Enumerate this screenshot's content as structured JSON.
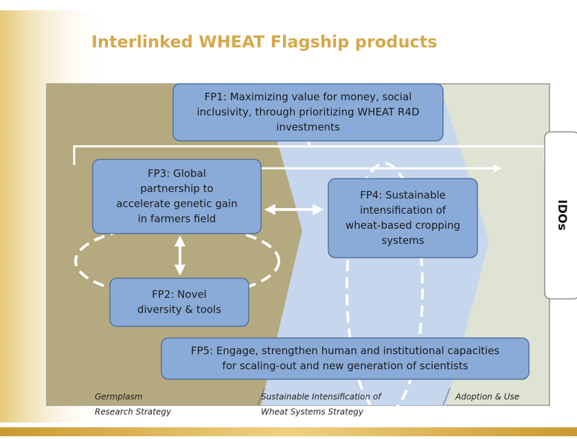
{
  "title": "Interlinked WHEAT Flagship products",
  "nodes": [
    {
      "label": [
        "FP1: Maximizing value for money, social",
        "inclusivity, through prioritizing WHEAT R4D",
        "investments"
      ]
    },
    {
      "label": [
        "FP3: Global",
        "partnership to",
        "accelerate genetic gain",
        "in farmers field"
      ]
    },
    {
      "label": [
        "FP4: Sustainable",
        "intensification  of",
        "wheat-based cropping",
        "systems"
      ]
    },
    {
      "label": [
        "FP2: Novel",
        "diversity & tools"
      ]
    },
    {
      "label": [
        "FP5: Engage,  strengthen human and institutional capacities",
        "for scaling-out and new generation of  scientists"
      ]
    }
  ],
  "outcome": "IDOs",
  "strategies": [
    {
      "label": [
        "Germplasm",
        "Research Strategy"
      ]
    },
    {
      "label": [
        "Sustainable Intensification of",
        "Wheat Systems Strategy"
      ]
    },
    {
      "label": [
        "Adoption & Use"
      ]
    }
  ]
}
